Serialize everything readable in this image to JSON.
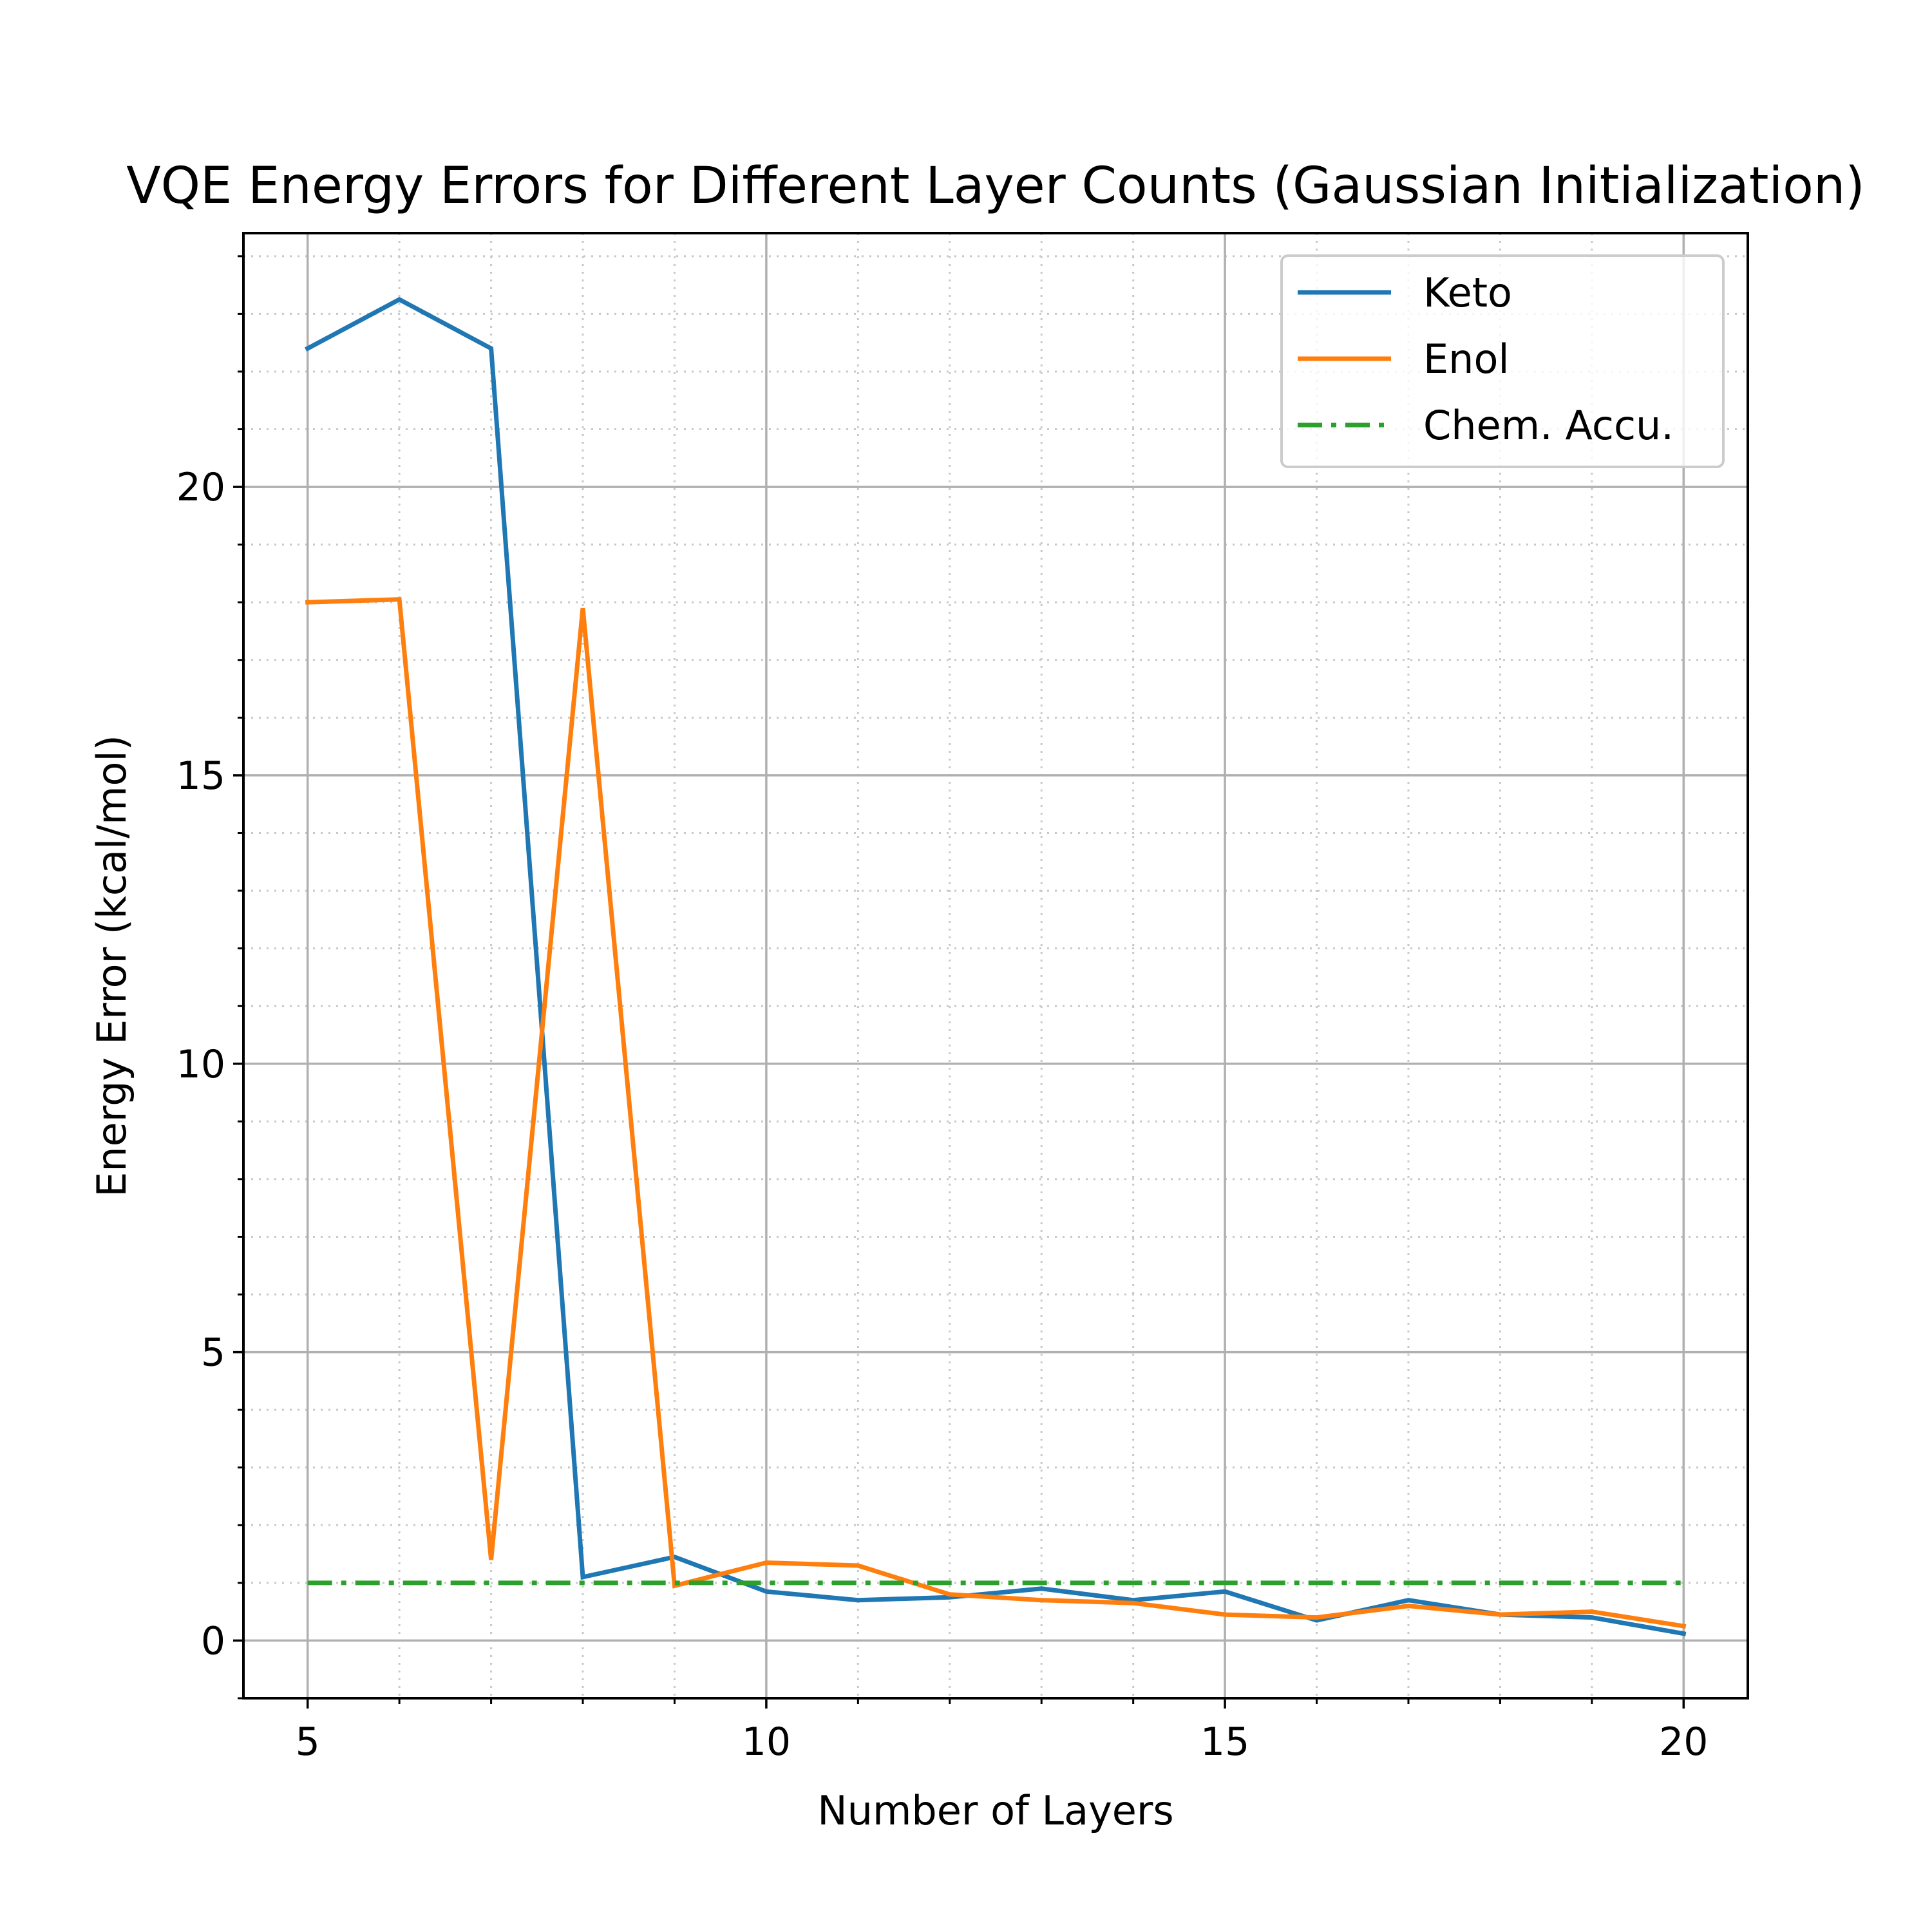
{
  "chart_data": {
    "type": "line",
    "title": "VQE Energy Errors for Different Layer Counts (Gaussian Initialization)",
    "xlabel": "Number of Layers",
    "ylabel": "Energy Error (kcal/mol)",
    "xlim": [
      4.3,
      20.7
    ],
    "ylim": [
      -1.0,
      24.4
    ],
    "xticks": [
      5,
      10,
      15,
      20
    ],
    "yticks": [
      0,
      5,
      10,
      15,
      20
    ],
    "xminor_step": 1,
    "yminor_step": 1,
    "grid": {
      "major": true,
      "minor": true,
      "minor_style": "dotted"
    },
    "legend_position": "top-right",
    "x": [
      5,
      6,
      7,
      8,
      9,
      10,
      11,
      12,
      13,
      14,
      15,
      16,
      17,
      18,
      19,
      20
    ],
    "series": [
      {
        "name": "Keto",
        "color": "#1f77b4",
        "style": "solid",
        "values": [
          22.4,
          23.25,
          22.4,
          1.1,
          1.45,
          0.85,
          0.7,
          0.75,
          0.9,
          0.7,
          0.85,
          0.35,
          0.7,
          0.45,
          0.4,
          0.12
        ]
      },
      {
        "name": "Enol",
        "color": "#ff7f0e",
        "style": "solid",
        "values": [
          18.0,
          18.05,
          1.4,
          17.9,
          0.95,
          1.35,
          1.3,
          0.8,
          0.7,
          0.65,
          0.45,
          0.4,
          0.6,
          0.45,
          0.5,
          0.25
        ]
      },
      {
        "name": "Chem. Accu.",
        "color": "#2ca02c",
        "style": "dashdot",
        "values": [
          1.0,
          1.0,
          1.0,
          1.0,
          1.0,
          1.0,
          1.0,
          1.0,
          1.0,
          1.0,
          1.0,
          1.0,
          1.0,
          1.0,
          1.0,
          1.0
        ]
      }
    ]
  }
}
